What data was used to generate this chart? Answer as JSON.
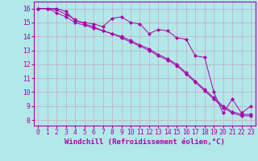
{
  "background_color": "#b2e8e8",
  "grid_color": "#c8a8c8",
  "line_color": "#aa00aa",
  "xlabel": "Windchill (Refroidissement éolien,°C)",
  "xlabel_fontsize": 6.5,
  "xtick_labels": [
    "0",
    "1",
    "2",
    "3",
    "4",
    "5",
    "6",
    "7",
    "8",
    "9",
    "10",
    "11",
    "12",
    "13",
    "14",
    "15",
    "16",
    "17",
    "18",
    "19",
    "20",
    "21",
    "22",
    "23"
  ],
  "ytick_labels": [
    "8",
    "9",
    "10",
    "11",
    "12",
    "13",
    "14",
    "15",
    "16"
  ],
  "ytick_vals": [
    8,
    9,
    10,
    11,
    12,
    13,
    14,
    15,
    16
  ],
  "ylim": [
    7.6,
    16.5
  ],
  "xlim": [
    -0.5,
    23.5
  ],
  "line1_x": [
    0,
    1,
    2,
    3,
    4,
    5,
    6,
    7,
    8,
    9,
    10,
    11,
    12,
    13,
    14,
    15,
    16,
    17,
    18,
    19,
    20,
    21,
    22,
    23
  ],
  "line1_y": [
    16.0,
    16.0,
    16.0,
    15.8,
    15.1,
    15.0,
    14.9,
    14.7,
    15.3,
    15.4,
    15.0,
    14.9,
    14.2,
    14.5,
    14.4,
    13.9,
    13.8,
    12.6,
    12.5,
    10.0,
    8.5,
    9.5,
    8.5,
    9.0
  ],
  "line2_x": [
    0,
    1,
    2,
    3,
    4,
    5,
    6,
    7,
    8,
    9,
    10,
    11,
    12,
    13,
    14,
    15,
    16,
    17,
    18,
    19,
    20,
    21,
    22,
    23
  ],
  "line2_y": [
    16.0,
    16.0,
    15.7,
    15.4,
    15.0,
    14.8,
    14.6,
    14.4,
    14.2,
    14.0,
    13.7,
    13.4,
    13.1,
    12.7,
    12.4,
    12.0,
    11.4,
    10.8,
    10.2,
    9.6,
    9.0,
    8.6,
    8.4,
    8.4
  ],
  "line3_x": [
    0,
    1,
    2,
    3,
    4,
    5,
    6,
    7,
    8,
    9,
    10,
    11,
    12,
    13,
    14,
    15,
    16,
    17,
    18,
    19,
    20,
    21,
    22,
    23
  ],
  "line3_y": [
    16.0,
    16.0,
    15.9,
    15.6,
    15.2,
    14.9,
    14.7,
    14.4,
    14.2,
    13.9,
    13.6,
    13.3,
    13.0,
    12.6,
    12.3,
    11.9,
    11.3,
    10.7,
    10.1,
    9.5,
    8.9,
    8.5,
    8.3,
    8.3
  ],
  "tick_fontsize": 5.8,
  "tick_color": "#aa00aa",
  "spine_color": "#aa00aa"
}
